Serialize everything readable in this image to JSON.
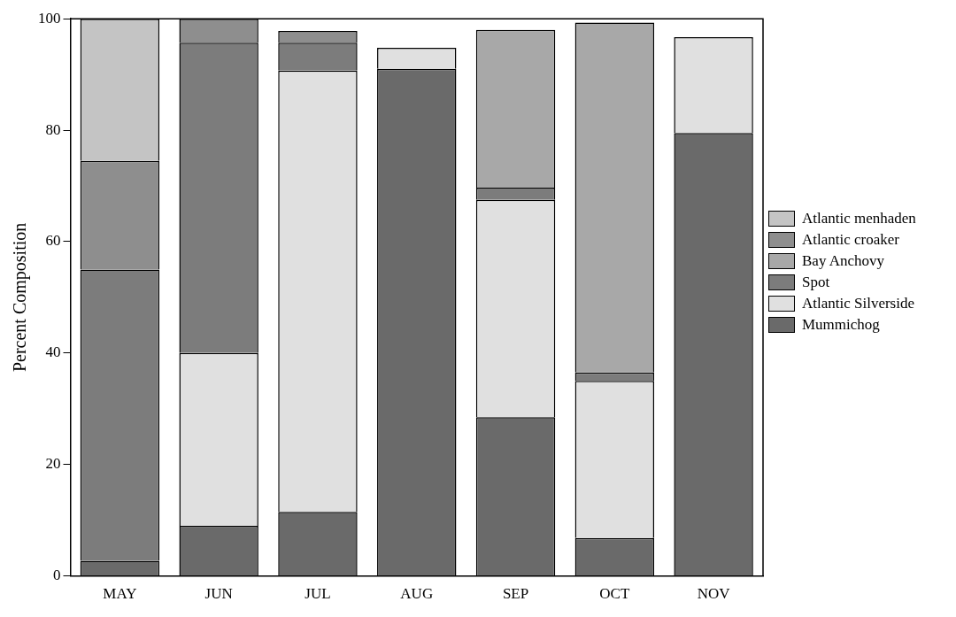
{
  "chart_data": {
    "type": "bar",
    "stacked": true,
    "ylabel": "Percent Composition",
    "categories": [
      "MAY",
      "JUN",
      "JUL",
      "AUG",
      "SEP",
      "OCT",
      "NOV"
    ],
    "series": [
      {
        "name": "Mummichog",
        "color": "#6a6a6a",
        "values": [
          2.7,
          9,
          11.5,
          91,
          28.5,
          6.8,
          79.5
        ]
      },
      {
        "name": "Atlantic Silverside",
        "color": "#e0e0e0",
        "values": [
          0,
          31,
          79.2,
          3.8,
          39,
          28.2,
          17.2
        ]
      },
      {
        "name": "Spot",
        "color": "#7c7c7c",
        "values": [
          52.3,
          55.7,
          5,
          0,
          2.2,
          1.5,
          0
        ]
      },
      {
        "name": "Bay Anchovy",
        "color": "#a8a8a8",
        "values": [
          0,
          0,
          0,
          0,
          28.3,
          62.8,
          0
        ]
      },
      {
        "name": "Atlantic croaker",
        "color": "#8e8e8e",
        "values": [
          19.5,
          4.3,
          2.1,
          0,
          0,
          0,
          0
        ]
      },
      {
        "name": "Atlantic menhaden",
        "color": "#c4c4c4",
        "values": [
          25.5,
          0,
          0,
          0,
          0,
          0,
          0
        ]
      }
    ],
    "ylim": [
      0,
      100
    ],
    "yticks": [
      0,
      20,
      40,
      60,
      80,
      100
    ],
    "grid": false,
    "legend": "right"
  }
}
